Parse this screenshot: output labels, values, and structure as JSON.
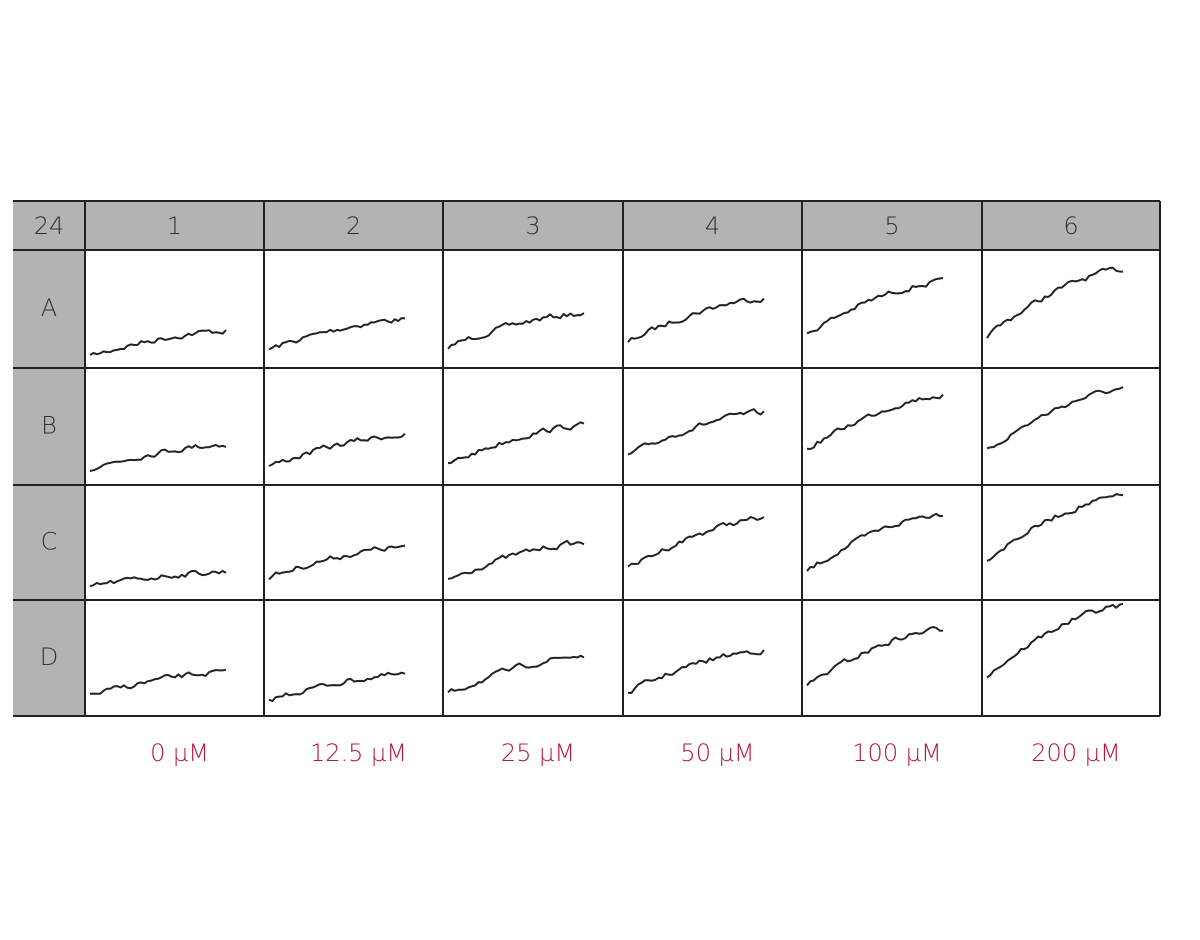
{
  "plate": {
    "corner": "24",
    "columns": [
      "1",
      "2",
      "3",
      "4",
      "5",
      "6"
    ],
    "rows": [
      "A",
      "B",
      "C",
      "D"
    ],
    "concentrations": [
      "0 µM",
      "12.5 µM",
      "25 µM",
      "50 µM",
      "100 µM",
      "200 µM"
    ]
  }
}
